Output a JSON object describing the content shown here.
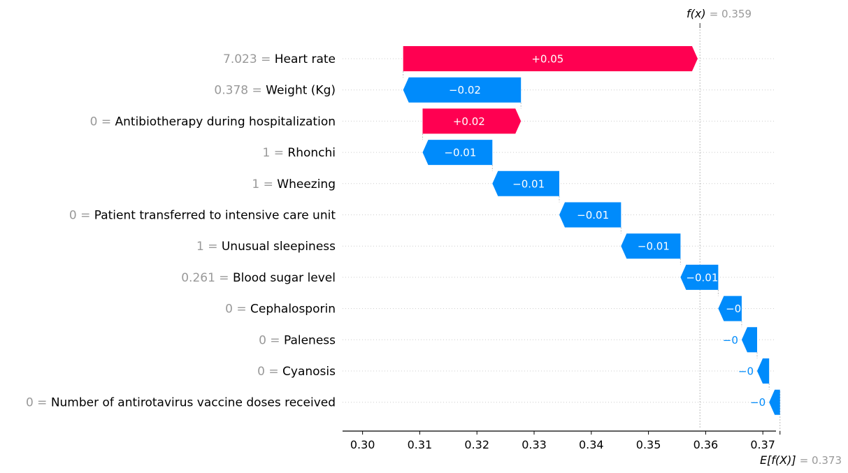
{
  "chart_data": {
    "type": "waterfall",
    "fx_label": "f(x)",
    "fx_value": "0.359",
    "efx_label": "E[f(X)]",
    "efx_value": "0.373",
    "base_value": 0.373,
    "final_value": 0.359,
    "xlim": [
      0.2965,
      0.3723
    ],
    "xticks": [
      "0.30",
      "0.31",
      "0.32",
      "0.33",
      "0.34",
      "0.35",
      "0.36",
      "0.37"
    ],
    "tick_values": [
      0.3,
      0.31,
      0.32,
      0.33,
      0.34,
      0.35,
      0.36,
      0.37
    ],
    "colors": {
      "positive": "#ff0051",
      "negative": "#008bfb",
      "feature_value": "#999999"
    },
    "features": [
      {
        "value": "7.023",
        "name": "Heart rate",
        "contribution": 0.0515,
        "label": "+0.05"
      },
      {
        "value": "0.378",
        "name": "Weight (Kg)",
        "contribution": -0.0206,
        "label": "−0.02"
      },
      {
        "value": "0",
        "name": "Antibiotherapy during hospitalization",
        "contribution": 0.0172,
        "label": "+0.02"
      },
      {
        "value": "1",
        "name": "Rhonchi",
        "contribution": -0.0122,
        "label": "−0.01"
      },
      {
        "value": "1",
        "name": "Wheezing",
        "contribution": -0.0117,
        "label": "−0.01"
      },
      {
        "value": "0",
        "name": "Patient transferred to intensive care unit",
        "contribution": -0.0108,
        "label": "−0.01"
      },
      {
        "value": "1",
        "name": "Unusual sleepiness",
        "contribution": -0.0104,
        "label": "−0.01"
      },
      {
        "value": "0.261",
        "name": "Blood sugar level",
        "contribution": -0.0066,
        "label": "−0.01"
      },
      {
        "value": "0",
        "name": "Cephalosporin",
        "contribution": -0.0041,
        "label": "−0"
      },
      {
        "value": "0",
        "name": "Paleness",
        "contribution": -0.0027,
        "label": "−0"
      },
      {
        "value": "0",
        "name": "Cyanosis",
        "contribution": -0.0021,
        "label": "−0"
      },
      {
        "value": "0",
        "name": "Number of antirotavirus vaccine doses received",
        "contribution": -0.0019,
        "label": "−0"
      }
    ]
  }
}
